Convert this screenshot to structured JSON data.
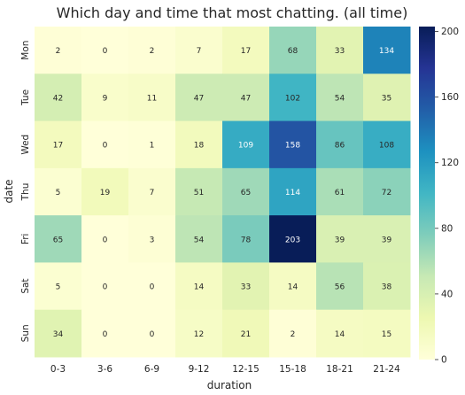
{
  "chart_data": {
    "type": "heatmap",
    "title": "Which day and time that most chatting. (all time)",
    "xlabel": "duration",
    "ylabel": "date",
    "x_categories": [
      "0-3",
      "3-6",
      "6-9",
      "9-12",
      "12-15",
      "15-18",
      "18-21",
      "21-24"
    ],
    "y_categories": [
      "Mon",
      "Tue",
      "Wed",
      "Thu",
      "Fri",
      "Sat",
      "Sun"
    ],
    "values": [
      [
        2,
        0,
        2,
        7,
        17,
        68,
        33,
        134
      ],
      [
        42,
        9,
        11,
        47,
        47,
        102,
        54,
        35
      ],
      [
        17,
        0,
        1,
        18,
        109,
        158,
        86,
        108
      ],
      [
        5,
        19,
        7,
        51,
        65,
        114,
        61,
        72
      ],
      [
        65,
        0,
        3,
        54,
        78,
        203,
        39,
        39
      ],
      [
        5,
        0,
        0,
        14,
        33,
        14,
        56,
        38
      ],
      [
        34,
        0,
        0,
        12,
        21,
        2,
        14,
        15
      ]
    ],
    "colorbar": {
      "range": [
        0,
        203
      ],
      "ticks": [
        0,
        40,
        80,
        120,
        160,
        200
      ],
      "colormap": "YlGnBu",
      "stops": [
        "#ffffd9",
        "#edf8b1",
        "#c7e9b4",
        "#7fcdbb",
        "#41b6c4",
        "#1d91c0",
        "#225ea8",
        "#253494",
        "#081d58"
      ]
    },
    "annotations": true,
    "grid": false
  }
}
